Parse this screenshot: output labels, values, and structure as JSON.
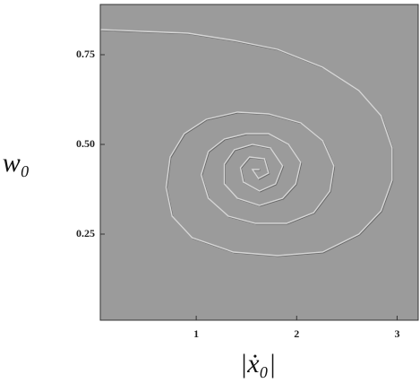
{
  "chart_data": {
    "type": "line",
    "x_label": "|ẋ₀|",
    "y_label": "w₀",
    "xlim": [
      0.045,
      3.21
    ],
    "ylim": [
      0.01,
      0.89
    ],
    "xticks": [
      1,
      2,
      3
    ],
    "yticks": [
      {
        "value": 0.25,
        "label": "0.25"
      },
      {
        "value": 0.5,
        "label": "0.50"
      },
      {
        "value": 0.75,
        "label": "0.75"
      }
    ],
    "background": "#9b9b9b",
    "series": [
      {
        "color": "#d6d6d6",
        "x": [
          0.05,
          0.47,
          0.92,
          1.37,
          1.81,
          2.26,
          2.62,
          2.84,
          2.95,
          2.95,
          2.84,
          2.62,
          2.26,
          1.81,
          1.37,
          0.96,
          0.76,
          0.7,
          0.74,
          0.88,
          1.1,
          1.41,
          1.72,
          2.04,
          2.26,
          2.37,
          2.33,
          2.17,
          1.9,
          1.59,
          1.32,
          1.12,
          1.05,
          1.12,
          1.28,
          1.5,
          1.72,
          1.92,
          2.04,
          1.99,
          1.86,
          1.63,
          1.41,
          1.28,
          1.28,
          1.38,
          1.56,
          1.74,
          1.86,
          1.79,
          1.63,
          1.47,
          1.44,
          1.53,
          1.68,
          1.72,
          1.62,
          1.56,
          1.63
        ],
        "values": [
          0.82,
          0.815,
          0.81,
          0.79,
          0.765,
          0.715,
          0.65,
          0.58,
          0.49,
          0.4,
          0.315,
          0.25,
          0.2,
          0.19,
          0.2,
          0.24,
          0.3,
          0.38,
          0.465,
          0.53,
          0.57,
          0.59,
          0.585,
          0.56,
          0.51,
          0.44,
          0.37,
          0.31,
          0.28,
          0.28,
          0.3,
          0.35,
          0.415,
          0.48,
          0.515,
          0.53,
          0.53,
          0.5,
          0.45,
          0.39,
          0.35,
          0.33,
          0.35,
          0.39,
          0.445,
          0.485,
          0.5,
          0.49,
          0.44,
          0.39,
          0.37,
          0.395,
          0.435,
          0.465,
          0.46,
          0.42,
          0.405,
          0.43,
          0.43
        ]
      }
    ]
  }
}
